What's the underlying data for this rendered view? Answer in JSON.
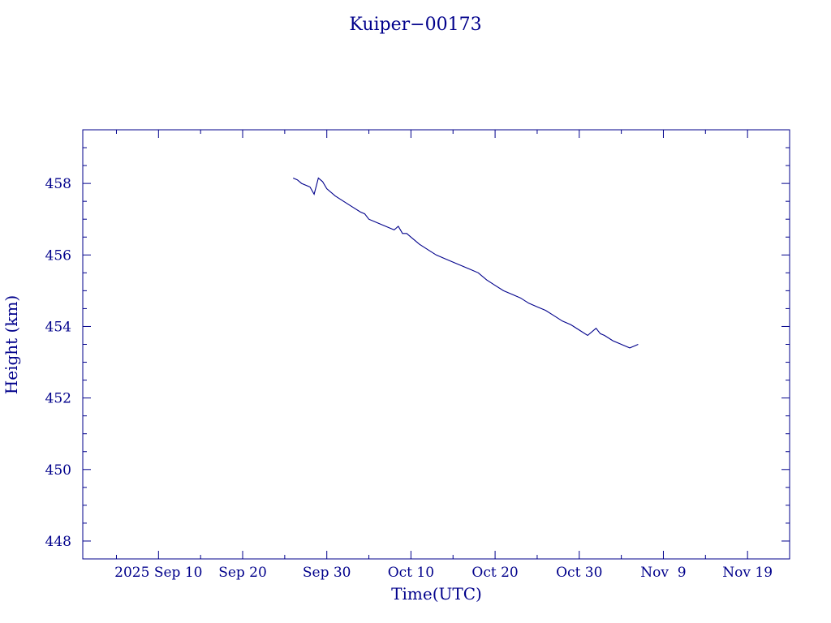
{
  "chart_data": {
    "type": "line",
    "title": "Kuiper−00173",
    "xlabel": "Time(UTC)",
    "ylabel": "Height (km)",
    "xlim": [
      "2025-09-01",
      "2025-11-24"
    ],
    "ylim": [
      447.5,
      459.5
    ],
    "xticks": [
      {
        "date": "2025-09-10",
        "label": "2025 Sep 10"
      },
      {
        "date": "2025-09-20",
        "label": "Sep 20"
      },
      {
        "date": "2025-09-30",
        "label": "Sep 30"
      },
      {
        "date": "2025-10-10",
        "label": "Oct 10"
      },
      {
        "date": "2025-10-20",
        "label": "Oct 20"
      },
      {
        "date": "2025-10-30",
        "label": "Oct 30"
      },
      {
        "date": "2025-11-09",
        "label": "Nov  9"
      },
      {
        "date": "2025-11-19",
        "label": "Nov 19"
      }
    ],
    "yticks": [
      {
        "value": 448,
        "label": "448"
      },
      {
        "value": 450,
        "label": "450"
      },
      {
        "value": 452,
        "label": "452"
      },
      {
        "value": 454,
        "label": "454"
      },
      {
        "value": 456,
        "label": "456"
      },
      {
        "value": 458,
        "label": "458"
      }
    ],
    "grid": false,
    "line_color": "#00008b",
    "series": [
      {
        "x": [
          "2025-09-26",
          "2025-09-26",
          "2025-09-27",
          "2025-09-28",
          "2025-09-28",
          "2025-09-29",
          "2025-09-29",
          "2025-09-30",
          "2025-10-01",
          "2025-10-02",
          "2025-10-03",
          "2025-10-04",
          "2025-10-04",
          "2025-10-05",
          "2025-10-06",
          "2025-10-07",
          "2025-10-08",
          "2025-10-08",
          "2025-10-09",
          "2025-10-09",
          "2025-10-10",
          "2025-10-11",
          "2025-10-12",
          "2025-10-13",
          "2025-10-14",
          "2025-10-15",
          "2025-10-16",
          "2025-10-17",
          "2025-10-18",
          "2025-10-19",
          "2025-10-20",
          "2025-10-21",
          "2025-10-22",
          "2025-10-23",
          "2025-10-24",
          "2025-10-25",
          "2025-10-26",
          "2025-10-27",
          "2025-10-28",
          "2025-10-29",
          "2025-10-30",
          "2025-10-31",
          "2025-11-01",
          "2025-11-01",
          "2025-11-02",
          "2025-11-03",
          "2025-11-04",
          "2025-11-05",
          "2025-11-05",
          "2025-11-06"
        ],
        "y": [
          458.15,
          458.1,
          458.0,
          457.9,
          457.7,
          458.15,
          458.05,
          457.85,
          457.65,
          457.5,
          457.35,
          457.2,
          457.15,
          457.0,
          456.9,
          456.8,
          456.7,
          456.8,
          456.6,
          456.6,
          456.5,
          456.3,
          456.15,
          456.0,
          455.9,
          455.8,
          455.7,
          455.6,
          455.5,
          455.3,
          455.15,
          455.0,
          454.9,
          454.8,
          454.65,
          454.55,
          454.45,
          454.3,
          454.15,
          454.05,
          453.9,
          453.75,
          453.95,
          453.8,
          453.75,
          453.6,
          453.5,
          453.4,
          453.45,
          453.5
        ]
      }
    ]
  }
}
